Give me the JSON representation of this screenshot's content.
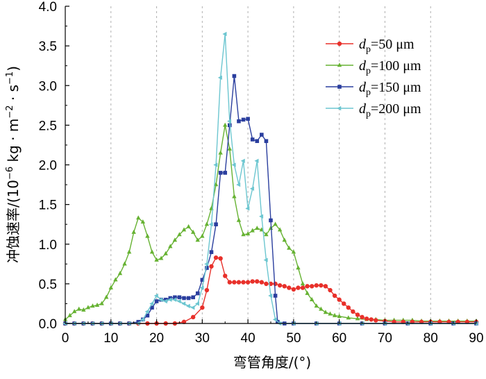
{
  "chart_data": {
    "type": "line",
    "title": "",
    "xlabel": "弯管角度/(°)",
    "ylabel": "冲蚀速率/(10⁻⁶ kg·m⁻²·s⁻¹)",
    "ylabel_parts": {
      "pre": "冲蚀速率/(10",
      "exp1": "−6",
      "mid1": " kg · m",
      "exp2": "−2",
      "mid2": " · s",
      "exp3": "−1",
      "post": ")"
    },
    "xlim": [
      0,
      90
    ],
    "ylim": [
      0,
      4.0
    ],
    "xticks": [
      "0",
      "10",
      "20",
      "30",
      "40",
      "50",
      "60",
      "70",
      "80",
      "90"
    ],
    "yticks": [
      "0.0",
      "0.5",
      "1.0",
      "1.5",
      "2.0",
      "2.5",
      "3.0",
      "3.5",
      "4.0"
    ],
    "legend_position": "top-right",
    "series": [
      {
        "name": "dp=50 μm",
        "legend_var": "d",
        "legend_sub": "p",
        "legend_rest": "=50 μm",
        "color": "#e8302a",
        "marker": "circle",
        "points": [
          [
            0,
            0
          ],
          [
            2,
            0
          ],
          [
            4,
            0
          ],
          [
            6,
            0
          ],
          [
            8,
            0
          ],
          [
            10,
            0
          ],
          [
            12,
            0
          ],
          [
            14,
            0
          ],
          [
            16,
            0
          ],
          [
            18,
            0
          ],
          [
            20,
            0
          ],
          [
            22,
            0
          ],
          [
            24,
            0
          ],
          [
            26,
            0.02
          ],
          [
            28,
            0.08
          ],
          [
            30,
            0.2
          ],
          [
            31,
            0.42
          ],
          [
            32,
            0.72
          ],
          [
            33,
            0.83
          ],
          [
            34,
            0.82
          ],
          [
            35,
            0.6
          ],
          [
            36,
            0.52
          ],
          [
            37,
            0.52
          ],
          [
            38,
            0.52
          ],
          [
            39,
            0.52
          ],
          [
            40,
            0.52
          ],
          [
            41,
            0.53
          ],
          [
            42,
            0.53
          ],
          [
            43,
            0.52
          ],
          [
            44,
            0.5
          ],
          [
            45,
            0.5
          ],
          [
            46,
            0.5
          ],
          [
            47,
            0.48
          ],
          [
            48,
            0.47
          ],
          [
            49,
            0.45
          ],
          [
            50,
            0.43
          ],
          [
            51,
            0.45
          ],
          [
            52,
            0.45
          ],
          [
            53,
            0.47
          ],
          [
            54,
            0.47
          ],
          [
            55,
            0.48
          ],
          [
            56,
            0.48
          ],
          [
            57,
            0.47
          ],
          [
            58,
            0.42
          ],
          [
            59,
            0.35
          ],
          [
            60,
            0.3
          ],
          [
            61,
            0.25
          ],
          [
            62,
            0.2
          ],
          [
            63,
            0.15
          ],
          [
            64,
            0.11
          ],
          [
            65,
            0.08
          ],
          [
            66,
            0.06
          ],
          [
            67,
            0.05
          ],
          [
            68,
            0.04
          ],
          [
            70,
            0.03
          ],
          [
            72,
            0.02
          ],
          [
            74,
            0.02
          ],
          [
            76,
            0.02
          ],
          [
            78,
            0.02
          ],
          [
            80,
            0.02
          ],
          [
            82,
            0.02
          ],
          [
            84,
            0.02
          ],
          [
            86,
            0.02
          ],
          [
            88,
            0.02
          ],
          [
            90,
            0.02
          ]
        ]
      },
      {
        "name": "dp=100 μm",
        "legend_var": "d",
        "legend_sub": "p",
        "legend_rest": "=100 μm",
        "color": "#66b232",
        "marker": "triangle",
        "points": [
          [
            0,
            0.05
          ],
          [
            1,
            0.1
          ],
          [
            2,
            0.15
          ],
          [
            3,
            0.18
          ],
          [
            4,
            0.17
          ],
          [
            5,
            0.2
          ],
          [
            6,
            0.22
          ],
          [
            7,
            0.23
          ],
          [
            8,
            0.25
          ],
          [
            9,
            0.33
          ],
          [
            10,
            0.45
          ],
          [
            11,
            0.55
          ],
          [
            12,
            0.63
          ],
          [
            13,
            0.75
          ],
          [
            14,
            0.9
          ],
          [
            15,
            1.15
          ],
          [
            16,
            1.33
          ],
          [
            17,
            1.28
          ],
          [
            18,
            1.1
          ],
          [
            19,
            0.9
          ],
          [
            20,
            0.8
          ],
          [
            21,
            0.82
          ],
          [
            22,
            0.88
          ],
          [
            23,
            0.97
          ],
          [
            24,
            1.05
          ],
          [
            25,
            1.12
          ],
          [
            26,
            1.18
          ],
          [
            27,
            1.22
          ],
          [
            28,
            1.15
          ],
          [
            29,
            1.05
          ],
          [
            30,
            1.1
          ],
          [
            31,
            1.25
          ],
          [
            32,
            1.45
          ],
          [
            33,
            1.75
          ],
          [
            34,
            2.15
          ],
          [
            35,
            2.5
          ],
          [
            36,
            2.2
          ],
          [
            37,
            1.6
          ],
          [
            38,
            1.3
          ],
          [
            39,
            1.12
          ],
          [
            40,
            1.13
          ],
          [
            41,
            1.17
          ],
          [
            42,
            1.2
          ],
          [
            43,
            1.18
          ],
          [
            44,
            1.12
          ],
          [
            45,
            1.2
          ],
          [
            46,
            1.25
          ],
          [
            47,
            1.18
          ],
          [
            48,
            1.05
          ],
          [
            49,
            0.95
          ],
          [
            50,
            0.9
          ],
          [
            51,
            0.7
          ],
          [
            52,
            0.5
          ],
          [
            53,
            0.38
          ],
          [
            54,
            0.3
          ],
          [
            55,
            0.22
          ],
          [
            56,
            0.18
          ],
          [
            57,
            0.14
          ],
          [
            58,
            0.12
          ],
          [
            59,
            0.1
          ],
          [
            60,
            0.09
          ],
          [
            62,
            0.07
          ],
          [
            64,
            0.06
          ],
          [
            66,
            0.05
          ],
          [
            68,
            0.05
          ],
          [
            70,
            0.04
          ],
          [
            72,
            0.04
          ],
          [
            74,
            0.04
          ],
          [
            76,
            0.04
          ],
          [
            78,
            0.03
          ],
          [
            80,
            0.03
          ],
          [
            82,
            0.03
          ],
          [
            84,
            0.03
          ],
          [
            86,
            0.03
          ],
          [
            88,
            0.03
          ],
          [
            90,
            0.03
          ]
        ]
      },
      {
        "name": "dp=150 μm",
        "legend_var": "d",
        "legend_sub": "p",
        "legend_rest": "=150 μm",
        "color": "#2a3e9e",
        "marker": "square",
        "points": [
          [
            0,
            0
          ],
          [
            2,
            0
          ],
          [
            4,
            0
          ],
          [
            6,
            0
          ],
          [
            8,
            0
          ],
          [
            10,
            0
          ],
          [
            12,
            0
          ],
          [
            14,
            0
          ],
          [
            16,
            0.02
          ],
          [
            17,
            0.05
          ],
          [
            18,
            0.1
          ],
          [
            19,
            0.2
          ],
          [
            20,
            0.28
          ],
          [
            21,
            0.3
          ],
          [
            22,
            0.3
          ],
          [
            23,
            0.32
          ],
          [
            24,
            0.33
          ],
          [
            25,
            0.33
          ],
          [
            26,
            0.32
          ],
          [
            27,
            0.32
          ],
          [
            28,
            0.33
          ],
          [
            29,
            0.38
          ],
          [
            30,
            0.55
          ],
          [
            31,
            0.7
          ],
          [
            32,
            0.9
          ],
          [
            33,
            1.25
          ],
          [
            34,
            1.9
          ],
          [
            35,
            1.9
          ],
          [
            36,
            2.5
          ],
          [
            37,
            3.12
          ],
          [
            38,
            2.55
          ],
          [
            39,
            2.57
          ],
          [
            40,
            2.58
          ],
          [
            41,
            2.32
          ],
          [
            42,
            2.3
          ],
          [
            43,
            2.38
          ],
          [
            44,
            2.3
          ],
          [
            45,
            1.3
          ],
          [
            46,
            0.35
          ],
          [
            46.5,
            0.02
          ],
          [
            48,
            0
          ],
          [
            50,
            0
          ],
          [
            55,
            0
          ],
          [
            60,
            0
          ],
          [
            65,
            0
          ],
          [
            70,
            0
          ],
          [
            75,
            0
          ],
          [
            80,
            0
          ],
          [
            85,
            0
          ],
          [
            90,
            0
          ]
        ]
      },
      {
        "name": "dp=200 μm",
        "legend_var": "d",
        "legend_sub": "p",
        "legend_rest": "=200 μm",
        "color": "#6cc6d0",
        "marker": "leftTriangle",
        "points": [
          [
            0,
            0
          ],
          [
            2,
            0
          ],
          [
            4,
            0
          ],
          [
            6,
            0
          ],
          [
            8,
            0
          ],
          [
            10,
            0
          ],
          [
            12,
            0
          ],
          [
            14,
            0
          ],
          [
            16,
            0
          ],
          [
            17,
            0.05
          ],
          [
            18,
            0.15
          ],
          [
            19,
            0.25
          ],
          [
            20,
            0.35
          ],
          [
            21,
            0.3
          ],
          [
            22,
            0.28
          ],
          [
            23,
            0.3
          ],
          [
            24,
            0.3
          ],
          [
            25,
            0.28
          ],
          [
            26,
            0.25
          ],
          [
            27,
            0.22
          ],
          [
            28,
            0.2
          ],
          [
            29,
            0.25
          ],
          [
            30,
            0.45
          ],
          [
            31,
            0.75
          ],
          [
            32,
            1.25
          ],
          [
            33,
            2.0
          ],
          [
            34,
            3.1
          ],
          [
            35,
            3.65
          ],
          [
            36,
            2.55
          ],
          [
            37,
            2.0
          ],
          [
            38,
            1.75
          ],
          [
            39,
            2.05
          ],
          [
            40,
            1.45
          ],
          [
            41,
            1.7
          ],
          [
            42,
            2.05
          ],
          [
            43,
            1.35
          ],
          [
            44,
            0.8
          ],
          [
            45,
            0.35
          ],
          [
            46,
            0.05
          ],
          [
            47,
            0
          ],
          [
            50,
            0
          ],
          [
            55,
            0
          ],
          [
            60,
            0
          ],
          [
            65,
            0
          ],
          [
            70,
            0
          ],
          [
            75,
            0
          ],
          [
            80,
            0
          ],
          [
            85,
            0
          ],
          [
            90,
            0
          ]
        ]
      }
    ]
  }
}
